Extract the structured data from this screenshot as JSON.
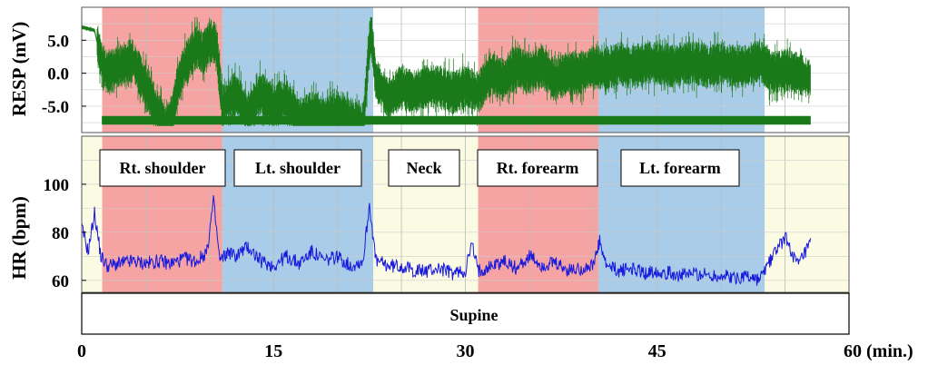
{
  "chart_data": [
    {
      "type": "line",
      "panel": "resp",
      "ylabel": "RESP (mV)",
      "yticks": [
        5.0,
        0.0,
        -5.0
      ],
      "ytick_labels": [
        "5.0",
        "0.0",
        "-5.0"
      ],
      "ylim": [
        -9,
        10
      ],
      "xlim": [
        0,
        60
      ],
      "grid": true,
      "series_color": "#1a7a1a",
      "series": [
        {
          "x": [
            0,
            1,
            1.5,
            2,
            3,
            4,
            5,
            6,
            6.5,
            7,
            7.5,
            8,
            9,
            9.5,
            10,
            10.5,
            11,
            12,
            13,
            14,
            15,
            16,
            17,
            18,
            19,
            20,
            21,
            22,
            22.6,
            23,
            24,
            25,
            26,
            27,
            28,
            29,
            30,
            31,
            32,
            33,
            34,
            35,
            36,
            37,
            38,
            39,
            40,
            41,
            42,
            43,
            44,
            45,
            46,
            47,
            48,
            49,
            50,
            51,
            52,
            53,
            54,
            55,
            56,
            57
          ],
          "y": [
            7,
            6.5,
            2,
            0,
            1,
            2,
            -2,
            -6,
            -8,
            -7,
            -2,
            1,
            4,
            3,
            5,
            4.5,
            -5,
            -3,
            -6,
            -3,
            -5,
            -4,
            -7,
            -6,
            -7,
            -6,
            -7,
            -8,
            7,
            -1,
            -4,
            -2,
            -3,
            -2,
            -2,
            -3,
            -2,
            -3,
            0,
            -1,
            1,
            0,
            1,
            -1,
            0,
            0,
            1,
            0.5,
            1.5,
            1,
            1.5,
            1.5,
            1,
            1.5,
            1.5,
            1,
            1.5,
            1,
            1,
            2,
            0,
            0.5,
            0,
            -1
          ]
        }
      ]
    },
    {
      "type": "line",
      "panel": "hr",
      "ylabel": "HR (bpm)",
      "yticks": [
        100,
        80,
        60
      ],
      "ytick_labels": [
        "100",
        "80",
        "60"
      ],
      "ylim": [
        55,
        120
      ],
      "xlim": [
        0,
        60
      ],
      "xticks": [
        0,
        15,
        30,
        45,
        60
      ],
      "xtick_labels": [
        "0",
        "15",
        "30",
        "45",
        "60 (min.)"
      ],
      "grid": true,
      "series_color": "#1a1adc",
      "series": [
        {
          "x": [
            0,
            0.5,
            1,
            1.5,
            2,
            3,
            4,
            5,
            6,
            7,
            8,
            9,
            9.8,
            10.3,
            10.8,
            11.5,
            12,
            13,
            14,
            15,
            16,
            17,
            18,
            19,
            20,
            21,
            22,
            22.5,
            23,
            24,
            25,
            26,
            27,
            28,
            29,
            30,
            30.5,
            31,
            32,
            33,
            34,
            35,
            36,
            37,
            38,
            39,
            40,
            40.5,
            41,
            42,
            43,
            44,
            45,
            46,
            47,
            48,
            49,
            50,
            51,
            52,
            53,
            54,
            55,
            56,
            57
          ],
          "y": [
            82,
            72,
            88,
            70,
            66,
            67,
            68,
            67,
            68,
            67,
            69,
            68,
            72,
            93,
            68,
            72,
            70,
            74,
            68,
            66,
            70,
            67,
            72,
            68,
            70,
            66,
            68,
            92,
            68,
            66,
            66,
            64,
            64,
            65,
            63,
            64,
            75,
            64,
            66,
            68,
            65,
            70,
            66,
            67,
            64,
            65,
            66,
            76,
            66,
            64,
            65,
            63,
            64,
            63,
            62,
            63,
            62,
            62,
            61,
            62,
            60,
            70,
            78,
            66,
            75
          ]
        }
      ]
    },
    {
      "type": "table",
      "panel": "segments",
      "segments": [
        {
          "label": "Rt. shoulder",
          "start": 1.6,
          "end": 11.0,
          "color": "#f6a3a3"
        },
        {
          "label": "Lt. shoulder",
          "start": 11.0,
          "end": 22.8,
          "color": "#a9cde8"
        },
        {
          "label": "Neck",
          "start": 22.8,
          "end": 31.0,
          "color": "#ffffff"
        },
        {
          "label": "Rt. forearm",
          "start": 31.0,
          "end": 40.4,
          "color": "#f6a3a3"
        },
        {
          "label": "Lt. forearm",
          "start": 40.4,
          "end": 53.4,
          "color": "#a9cde8"
        }
      ],
      "posture_label": "Supine",
      "resp_background": "#ffffff",
      "hr_background": "#fbfbe3"
    }
  ]
}
